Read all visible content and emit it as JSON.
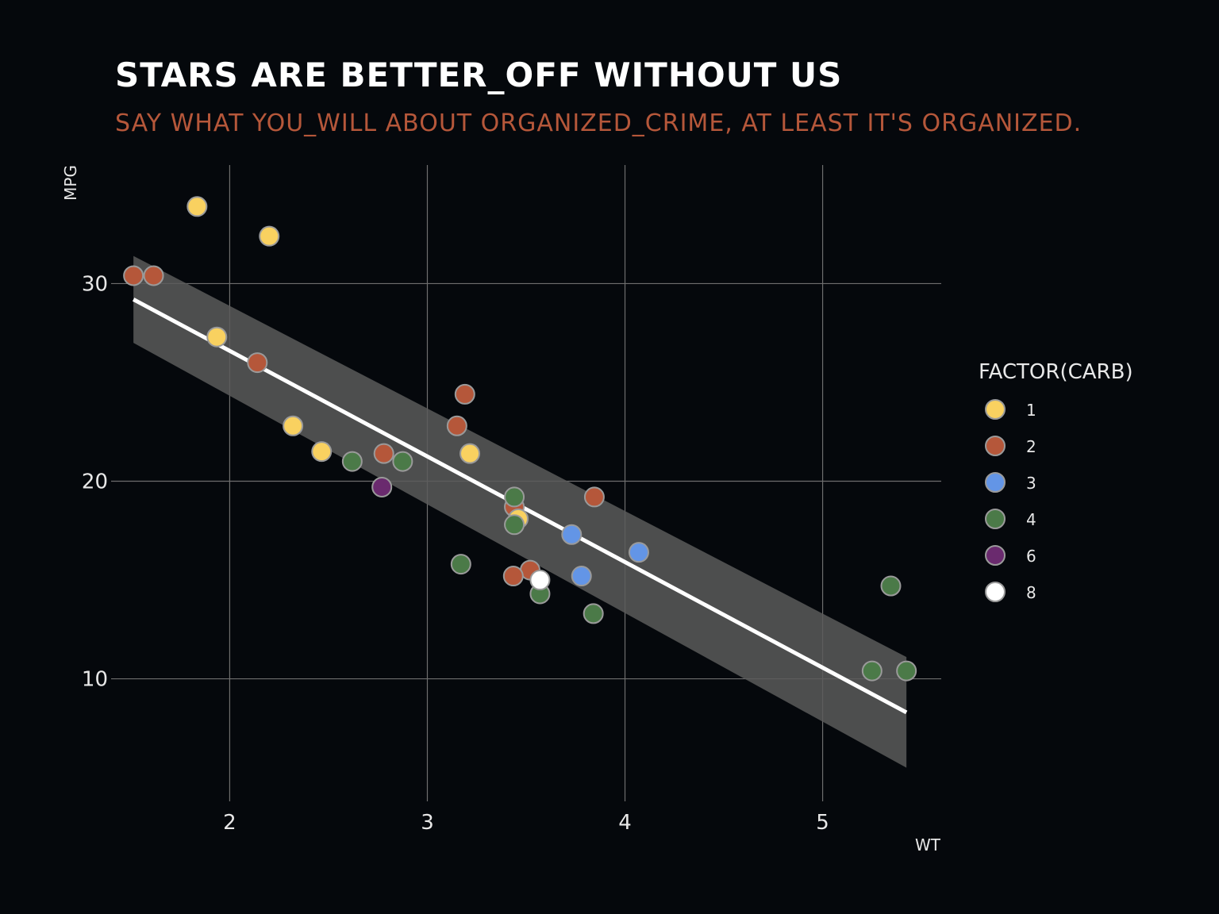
{
  "chart_data": {
    "type": "scatter",
    "title": "STARS ARE BETTER_OFF WITHOUT US",
    "subtitle": "SAY WHAT YOU_WILL ABOUT ORGANIZED_CRIME, AT LEAST IT'S ORGANIZED.",
    "xlabel": "WT",
    "ylabel": "MPG",
    "xlim": [
      1.4,
      5.6
    ],
    "ylim": [
      3.8,
      36
    ],
    "x_ticks": [
      2,
      3,
      4,
      5
    ],
    "y_ticks": [
      10,
      20,
      30
    ],
    "grid": true,
    "legend": {
      "title": "FACTOR(CARB)",
      "placement": "right",
      "entries": [
        {
          "label": "1",
          "color": "#f9d160"
        },
        {
          "label": "2",
          "color": "#b5573a"
        },
        {
          "label": "3",
          "color": "#6395e6"
        },
        {
          "label": "4",
          "color": "#4b7a48"
        },
        {
          "label": "6",
          "color": "#6a2a6e"
        },
        {
          "label": "8",
          "color": "#ffffff"
        }
      ]
    },
    "points": [
      {
        "wt": 2.62,
        "mpg": 21.0,
        "carb": "4"
      },
      {
        "wt": 2.875,
        "mpg": 21.0,
        "carb": "4"
      },
      {
        "wt": 2.32,
        "mpg": 22.8,
        "carb": "1"
      },
      {
        "wt": 3.215,
        "mpg": 21.4,
        "carb": "1"
      },
      {
        "wt": 3.44,
        "mpg": 18.7,
        "carb": "2"
      },
      {
        "wt": 3.46,
        "mpg": 18.1,
        "carb": "1"
      },
      {
        "wt": 3.57,
        "mpg": 14.3,
        "carb": "4"
      },
      {
        "wt": 3.19,
        "mpg": 24.4,
        "carb": "2"
      },
      {
        "wt": 3.15,
        "mpg": 22.8,
        "carb": "2"
      },
      {
        "wt": 3.44,
        "mpg": 19.2,
        "carb": "4"
      },
      {
        "wt": 3.44,
        "mpg": 17.8,
        "carb": "4"
      },
      {
        "wt": 4.07,
        "mpg": 16.4,
        "carb": "3"
      },
      {
        "wt": 3.73,
        "mpg": 17.3,
        "carb": "3"
      },
      {
        "wt": 3.78,
        "mpg": 15.2,
        "carb": "3"
      },
      {
        "wt": 5.25,
        "mpg": 10.4,
        "carb": "4"
      },
      {
        "wt": 5.424,
        "mpg": 10.4,
        "carb": "4"
      },
      {
        "wt": 5.345,
        "mpg": 14.7,
        "carb": "4"
      },
      {
        "wt": 2.2,
        "mpg": 32.4,
        "carb": "1"
      },
      {
        "wt": 1.615,
        "mpg": 30.4,
        "carb": "2"
      },
      {
        "wt": 1.835,
        "mpg": 33.9,
        "carb": "1"
      },
      {
        "wt": 2.465,
        "mpg": 21.5,
        "carb": "1"
      },
      {
        "wt": 3.52,
        "mpg": 15.5,
        "carb": "2"
      },
      {
        "wt": 3.435,
        "mpg": 15.2,
        "carb": "2"
      },
      {
        "wt": 3.84,
        "mpg": 13.3,
        "carb": "4"
      },
      {
        "wt": 3.845,
        "mpg": 19.2,
        "carb": "2"
      },
      {
        "wt": 1.935,
        "mpg": 27.3,
        "carb": "1"
      },
      {
        "wt": 2.14,
        "mpg": 26.0,
        "carb": "2"
      },
      {
        "wt": 1.513,
        "mpg": 30.4,
        "carb": "2"
      },
      {
        "wt": 3.17,
        "mpg": 15.8,
        "carb": "4"
      },
      {
        "wt": 2.77,
        "mpg": 19.7,
        "carb": "6"
      },
      {
        "wt": 3.57,
        "mpg": 15.0,
        "carb": "8"
      },
      {
        "wt": 2.78,
        "mpg": 21.4,
        "carb": "2"
      }
    ],
    "fit_line": {
      "method": "lm",
      "x": [
        1.513,
        5.424
      ],
      "y": [
        29.2,
        8.3
      ],
      "ci_band": {
        "x": [
          1.513,
          5.424
        ],
        "lower": [
          27.0,
          5.5
        ],
        "upper": [
          31.4,
          11.1
        ]
      },
      "line_color": "#ffffff",
      "band_color": "#5a5a5a"
    }
  }
}
